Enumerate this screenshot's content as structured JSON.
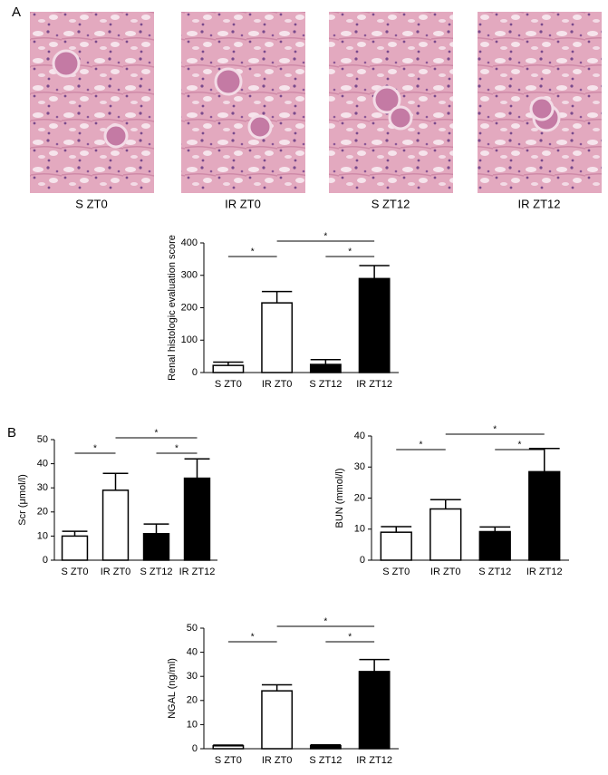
{
  "panels": [
    "A",
    "B"
  ],
  "images": [
    {
      "caption": "S ZT0"
    },
    {
      "caption": "IR ZT0"
    },
    {
      "caption": "S ZT12"
    },
    {
      "caption": "IR ZT12"
    }
  ],
  "chart_data": [
    {
      "type": "bar",
      "ylabel": "Renal histologic evaluation  score",
      "categories": [
        "S ZT0",
        "IR ZT0",
        "S ZT12",
        "IR ZT12"
      ],
      "values": [
        22,
        215,
        25,
        290
      ],
      "errors": [
        10,
        35,
        15,
        40
      ],
      "colors": [
        "#ffffff",
        "#ffffff",
        "#000000",
        "#000000"
      ],
      "ylim": [
        0,
        400
      ],
      "yticks": [
        0,
        100,
        200,
        300,
        400
      ],
      "annotations": [
        {
          "text": "*",
          "from": "S ZT0",
          "to": "IR ZT0"
        },
        {
          "text": "*",
          "from": "IR ZT0",
          "to": "IR ZT12"
        },
        {
          "text": "*",
          "from": "S ZT12",
          "to": "IR ZT12"
        }
      ]
    },
    {
      "type": "bar",
      "ylabel": "Scr (μmol/l)",
      "categories": [
        "S ZT0",
        "IR ZT0",
        "S ZT12",
        "IR ZT12"
      ],
      "values": [
        10,
        29,
        11,
        34
      ],
      "errors": [
        2,
        7,
        4,
        8
      ],
      "colors": [
        "#ffffff",
        "#ffffff",
        "#000000",
        "#000000"
      ],
      "ylim": [
        0,
        50
      ],
      "yticks": [
        0,
        10,
        20,
        30,
        40,
        50
      ],
      "annotations": [
        {
          "text": "*",
          "from": "S ZT0",
          "to": "IR ZT0"
        },
        {
          "text": "*",
          "from": "IR ZT0",
          "to": "IR ZT12"
        },
        {
          "text": "*",
          "from": "S ZT12",
          "to": "IR ZT12"
        }
      ]
    },
    {
      "type": "bar",
      "ylabel": "BUN (mmol/l)",
      "categories": [
        "S ZT0",
        "IR ZT0",
        "S ZT12",
        "IR ZT12"
      ],
      "values": [
        9,
        16.5,
        9.2,
        28.5
      ],
      "errors": [
        1.8,
        3,
        1.5,
        7.5
      ],
      "colors": [
        "#ffffff",
        "#ffffff",
        "#000000",
        "#000000"
      ],
      "ylim": [
        0,
        40
      ],
      "yticks": [
        0,
        10,
        20,
        30,
        40
      ],
      "annotations": [
        {
          "text": "*",
          "from": "S ZT0",
          "to": "IR ZT0"
        },
        {
          "text": "*",
          "from": "IR ZT0",
          "to": "IR ZT12"
        },
        {
          "text": "*",
          "from": "S ZT12",
          "to": "IR ZT12"
        }
      ]
    },
    {
      "type": "bar",
      "ylabel": "NGAL (ng/ml)",
      "categories": [
        "S ZT0",
        "IR ZT0",
        "S ZT12",
        "IR ZT12"
      ],
      "values": [
        1.2,
        24,
        1.3,
        32
      ],
      "errors": [
        0.3,
        2.5,
        0.3,
        5
      ],
      "colors": [
        "#ffffff",
        "#ffffff",
        "#000000",
        "#000000"
      ],
      "ylim": [
        0,
        50
      ],
      "yticks": [
        0,
        10,
        20,
        30,
        40,
        50
      ],
      "annotations": [
        {
          "text": "*",
          "from": "S ZT0",
          "to": "IR ZT0"
        },
        {
          "text": "*",
          "from": "IR ZT0",
          "to": "IR ZT12"
        },
        {
          "text": "*",
          "from": "S ZT12",
          "to": "IR ZT12"
        }
      ]
    }
  ]
}
